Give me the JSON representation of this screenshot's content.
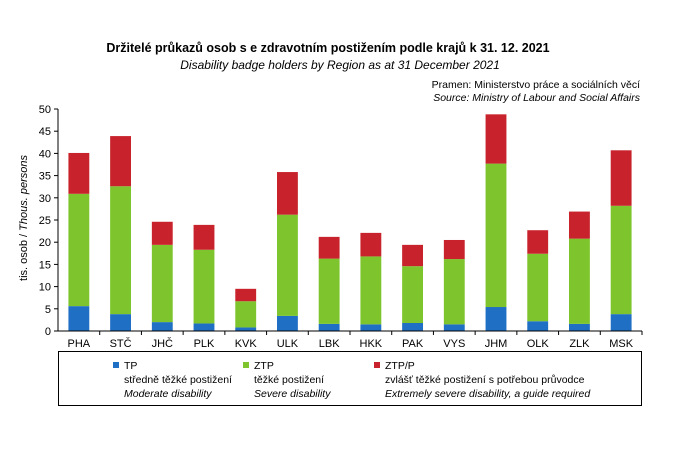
{
  "chart_data": {
    "type": "bar",
    "stacked": true,
    "title": "Držitelé průkazů osob s e zdravotním postižením podle krajů k 31. 12. 2021",
    "subtitle": "Disability badge holders by Region as at 31 December 2021",
    "source_cz": "Pramen: Ministerstvo práce a sociálních věcí",
    "source_en": "Source: Ministry of Labour and Social Affairs",
    "ylabel_cz": "tis. osob / ",
    "ylabel_en": "Thous. persons",
    "xlabel": "",
    "ylim": [
      0,
      50
    ],
    "yticks": [
      "0",
      "5",
      "10",
      "15",
      "20",
      "25",
      "30",
      "35",
      "40",
      "45",
      "50"
    ],
    "grid": false,
    "legend_position": "bottom",
    "categories": [
      "PHA",
      "STČ",
      "JHČ",
      "PLK",
      "KVK",
      "ULK",
      "LBK",
      "HKK",
      "PAK",
      "VYS",
      "JHM",
      "OLK",
      "ZLK",
      "MSK"
    ],
    "series": [
      {
        "name": "TP",
        "name_cz": "středně těžké postižení",
        "name_en": "Moderate disability",
        "color": "#1f6fc4",
        "values": [
          5.6,
          3.8,
          2.0,
          1.7,
          0.8,
          3.4,
          1.6,
          1.5,
          1.8,
          1.5,
          5.4,
          2.2,
          1.6,
          3.8
        ]
      },
      {
        "name": "ZTP",
        "name_cz": "těžké postižení",
        "name_en": "Severe disability",
        "color": "#7dc42d",
        "values": [
          25.3,
          28.8,
          17.4,
          16.6,
          5.9,
          22.8,
          14.7,
          15.3,
          12.8,
          14.7,
          32.3,
          15.2,
          19.2,
          24.4
        ]
      },
      {
        "name": "ZTP/P",
        "name_cz": "zvlášť těžké postižení s potřebou průvodce",
        "name_en": "Extremely severe disability, a guide required",
        "color": "#c8232c",
        "values": [
          9.2,
          11.3,
          5.2,
          5.6,
          2.8,
          9.6,
          4.9,
          5.3,
          4.8,
          4.3,
          11.1,
          5.3,
          6.1,
          12.5
        ]
      }
    ]
  }
}
